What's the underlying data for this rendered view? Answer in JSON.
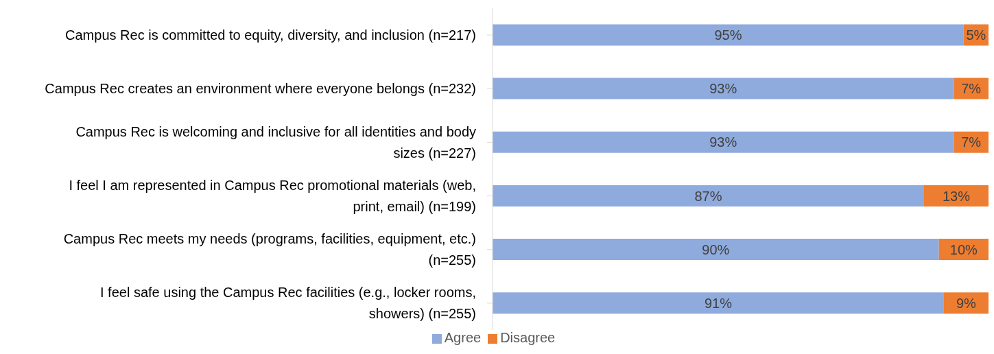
{
  "chart_data": {
    "type": "bar",
    "orientation": "horizontal",
    "stacked": true,
    "categories": [
      "Campus Rec is committed to equity, diversity, and inclusion (n=217)",
      "Campus Rec creates an environment where everyone belongs (n=232)",
      "Campus Rec is welcoming and inclusive for all identities and body sizes (n=227)",
      "I feel I am represented in Campus Rec promotional materials (web, print, email) (n=199)",
      "Campus Rec meets my needs (programs, facilities, equipment, etc.) (n=255)",
      "I feel safe using the Campus Rec facilities (e.g., locker rooms, showers) (n=255)"
    ],
    "series": [
      {
        "name": "Agree",
        "color": "#8faadc",
        "values": [
          95,
          93,
          93,
          87,
          90,
          91
        ],
        "value_labels": [
          "95%",
          "93%",
          "93%",
          "87%",
          "90%",
          "91%"
        ]
      },
      {
        "name": "Disagree",
        "color": "#ed7d31",
        "values": [
          5,
          7,
          7,
          13,
          10,
          9
        ],
        "value_labels": [
          "5%",
          "7%",
          "7%",
          "13%",
          "10%",
          "9%"
        ]
      }
    ],
    "xlim": [
      0,
      100
    ],
    "tick_labels": "y",
    "legend": "bottom"
  }
}
